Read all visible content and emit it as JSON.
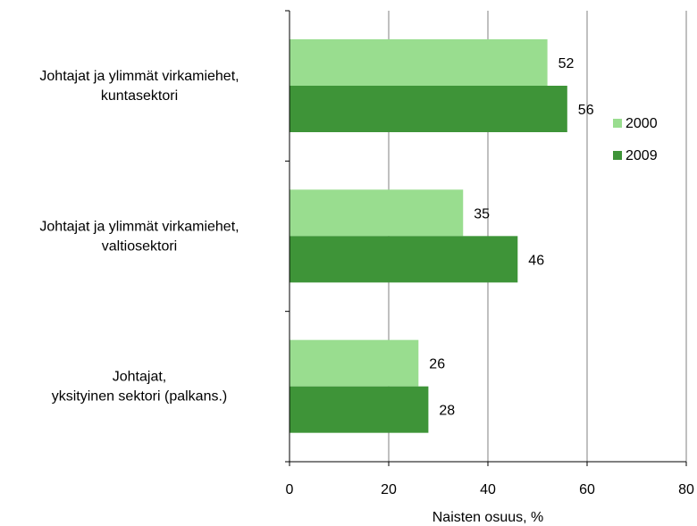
{
  "chart_data": {
    "type": "bar",
    "orientation": "horizontal",
    "categories": [
      [
        "Johtajat ja ylimmät virkamiehet,",
        "kuntasektori"
      ],
      [
        "Johtajat ja ylimmät virkamiehet,",
        "valtiosektori"
      ],
      [
        "Johtajat,",
        "yksityinen sektori (palkans.)"
      ]
    ],
    "series": [
      {
        "name": "2000",
        "color": "#99dd8f",
        "values": [
          52,
          35,
          26
        ]
      },
      {
        "name": "2009",
        "color": "#3e9438",
        "values": [
          56,
          46,
          28
        ]
      }
    ],
    "xlabel": "Naisten osuus, %",
    "xlim": [
      0,
      80
    ],
    "xticks": [
      0,
      20,
      40,
      60,
      80
    ],
    "grid": true,
    "legend_position": "right"
  }
}
